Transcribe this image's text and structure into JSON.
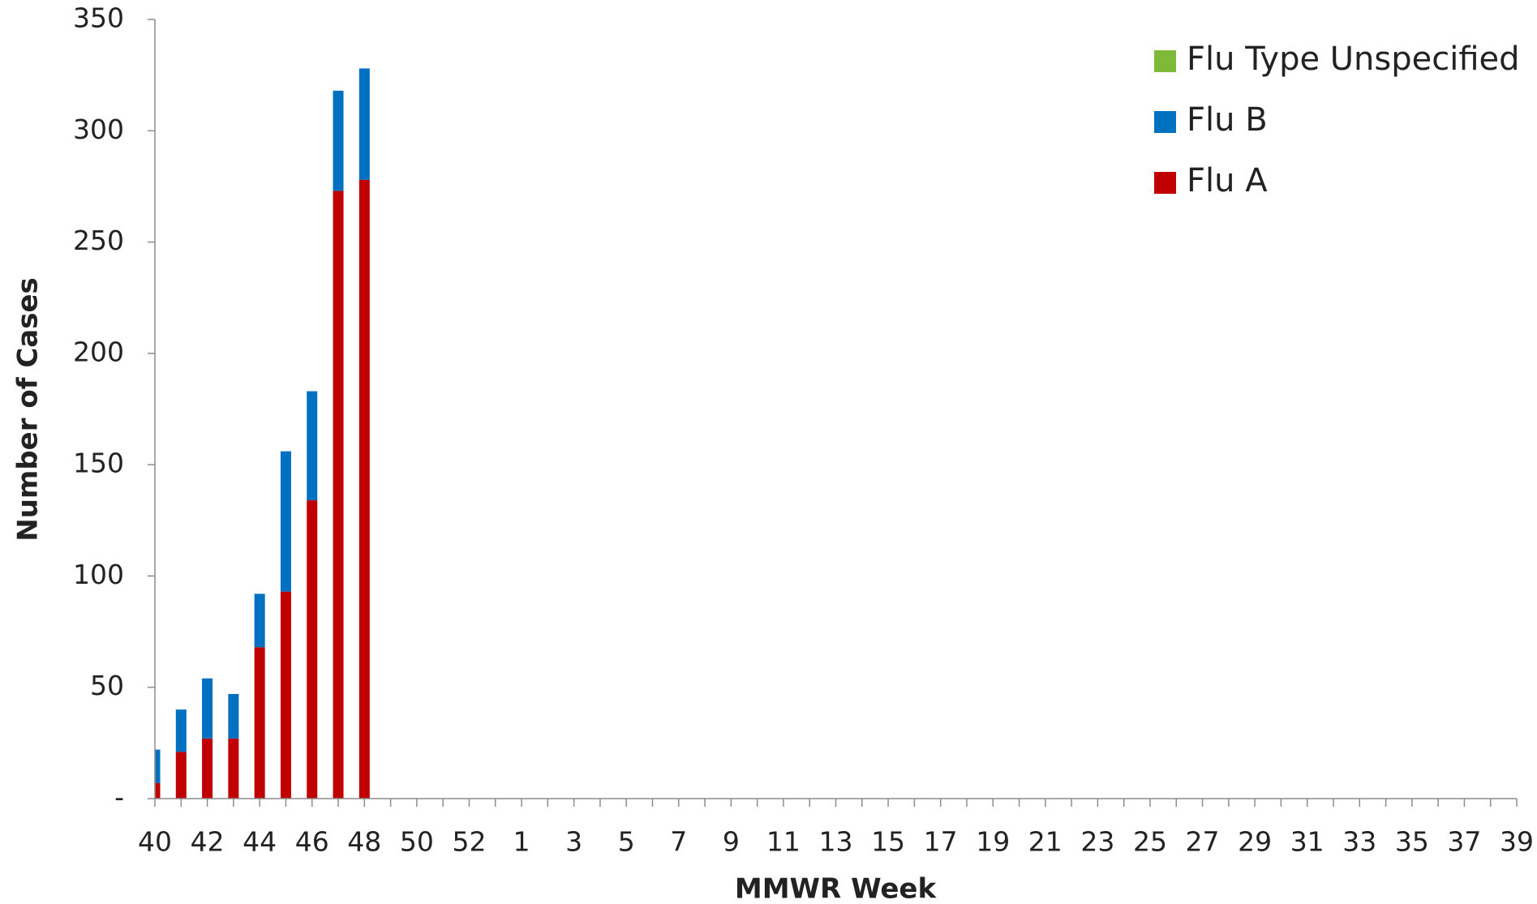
{
  "chart_data": {
    "type": "stacked_bar",
    "xlabel": "MMWR Week",
    "ylabel": "Number of Cases",
    "categories": [
      "40",
      null,
      "42",
      null,
      "44",
      null,
      "46",
      null,
      "48",
      null,
      "50",
      null,
      "52",
      null,
      "1",
      null,
      "3",
      null,
      "5",
      null,
      "7",
      null,
      "9",
      null,
      "11",
      null,
      "13",
      null,
      "15",
      null,
      "17",
      null,
      "19",
      null,
      "21",
      null,
      "23",
      null,
      "25",
      null,
      "27",
      null,
      "29",
      null,
      "31",
      null,
      "33",
      null,
      "35",
      null,
      "37",
      null,
      "39"
    ],
    "series": [
      {
        "name": "Flu A",
        "color": "#c00000",
        "values": [
          7,
          21,
          27,
          27,
          68,
          93,
          134,
          273,
          278,
          null,
          null,
          null,
          null,
          null,
          null,
          null,
          null,
          null,
          null,
          null,
          null,
          null,
          null,
          null,
          null,
          null,
          null,
          null,
          null,
          null,
          null,
          null,
          null,
          null,
          null,
          null,
          null,
          null,
          null,
          null,
          null,
          null,
          null,
          null,
          null,
          null,
          null,
          null,
          null,
          null,
          null,
          null,
          null
        ]
      },
      {
        "name": "Flu B",
        "color": "#0070c0",
        "values": [
          15,
          19,
          27,
          20,
          24,
          63,
          49,
          45,
          50,
          null,
          null,
          null,
          null,
          null,
          null,
          null,
          null,
          null,
          null,
          null,
          null,
          null,
          null,
          null,
          null,
          null,
          null,
          null,
          null,
          null,
          null,
          null,
          null,
          null,
          null,
          null,
          null,
          null,
          null,
          null,
          null,
          null,
          null,
          null,
          null,
          null,
          null,
          null,
          null,
          null,
          null,
          null,
          null
        ]
      },
      {
        "name": "Flu Type Unspecified",
        "color": "#7fb93a",
        "values": [
          0,
          0,
          0,
          0,
          0,
          0,
          0,
          0,
          0,
          null,
          null,
          null,
          null,
          null,
          null,
          null,
          null,
          null,
          null,
          null,
          null,
          null,
          null,
          null,
          null,
          null,
          null,
          null,
          null,
          null,
          null,
          null,
          null,
          null,
          null,
          null,
          null,
          null,
          null,
          null,
          null,
          null,
          null,
          null,
          null,
          null,
          null,
          null,
          null,
          null,
          null,
          null,
          null
        ]
      }
    ],
    "ylim": [
      0,
      350
    ],
    "yticks": [
      {
        "value": 0,
        "label": "-"
      },
      50,
      100,
      150,
      200,
      250,
      300,
      350
    ],
    "legend": "upper right"
  }
}
